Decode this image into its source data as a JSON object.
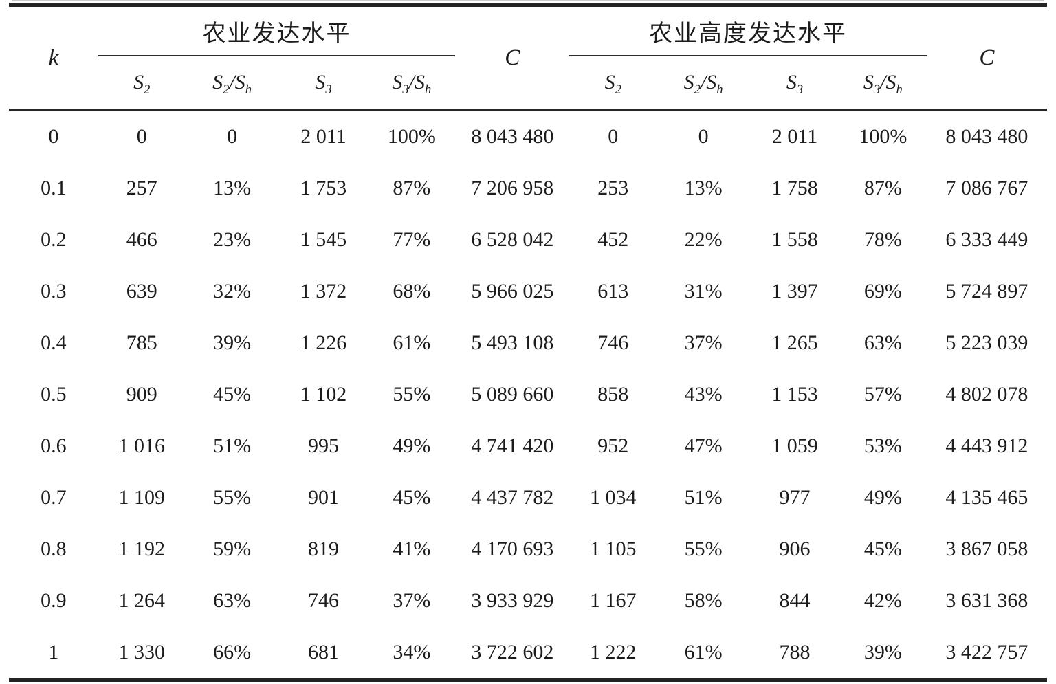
{
  "table": {
    "header": {
      "k_label": "k",
      "c_label": "C",
      "group1_title": "农业发达水平",
      "group2_title": "农业高度发达水平",
      "sub_columns": [
        [
          {
            "t": "S"
          },
          {
            "s": "2"
          }
        ],
        [
          {
            "t": "S"
          },
          {
            "s": "2"
          },
          {
            "t": "/S"
          },
          {
            "s": "h"
          }
        ],
        [
          {
            "t": "S"
          },
          {
            "s": "3"
          }
        ],
        [
          {
            "t": "S"
          },
          {
            "s": "3"
          },
          {
            "t": "/S"
          },
          {
            "s": "h"
          }
        ]
      ]
    },
    "rows": [
      [
        "0",
        "0",
        "0",
        "2 011",
        "100%",
        "8 043 480",
        "0",
        "0",
        "2 011",
        "100%",
        "8 043 480"
      ],
      [
        "0.1",
        "257",
        "13%",
        "1 753",
        "87%",
        "7 206 958",
        "253",
        "13%",
        "1 758",
        "87%",
        "7 086 767"
      ],
      [
        "0.2",
        "466",
        "23%",
        "1 545",
        "77%",
        "6 528 042",
        "452",
        "22%",
        "1 558",
        "78%",
        "6 333 449"
      ],
      [
        "0.3",
        "639",
        "32%",
        "1 372",
        "68%",
        "5 966 025",
        "613",
        "31%",
        "1 397",
        "69%",
        "5 724 897"
      ],
      [
        "0.4",
        "785",
        "39%",
        "1 226",
        "61%",
        "5 493 108",
        "746",
        "37%",
        "1 265",
        "63%",
        "5 223 039"
      ],
      [
        "0.5",
        "909",
        "45%",
        "1 102",
        "55%",
        "5 089 660",
        "858",
        "43%",
        "1 153",
        "57%",
        "4 802 078"
      ],
      [
        "0.6",
        "1 016",
        "51%",
        "995",
        "49%",
        "4 741 420",
        "952",
        "47%",
        "1 059",
        "53%",
        "4 443 912"
      ],
      [
        "0.7",
        "1 109",
        "55%",
        "901",
        "45%",
        "4 437 782",
        "1 034",
        "51%",
        "977",
        "49%",
        "4 135 465"
      ],
      [
        "0.8",
        "1 192",
        "59%",
        "819",
        "41%",
        "4 170 693",
        "1 105",
        "55%",
        "906",
        "45%",
        "3 867 058"
      ],
      [
        "0.9",
        "1 264",
        "63%",
        "746",
        "37%",
        "3 933 929",
        "1 167",
        "58%",
        "844",
        "42%",
        "3 631 368"
      ],
      [
        "1",
        "1 330",
        "66%",
        "681",
        "34%",
        "3 722 602",
        "1 222",
        "61%",
        "788",
        "39%",
        "3 422 757"
      ]
    ]
  }
}
